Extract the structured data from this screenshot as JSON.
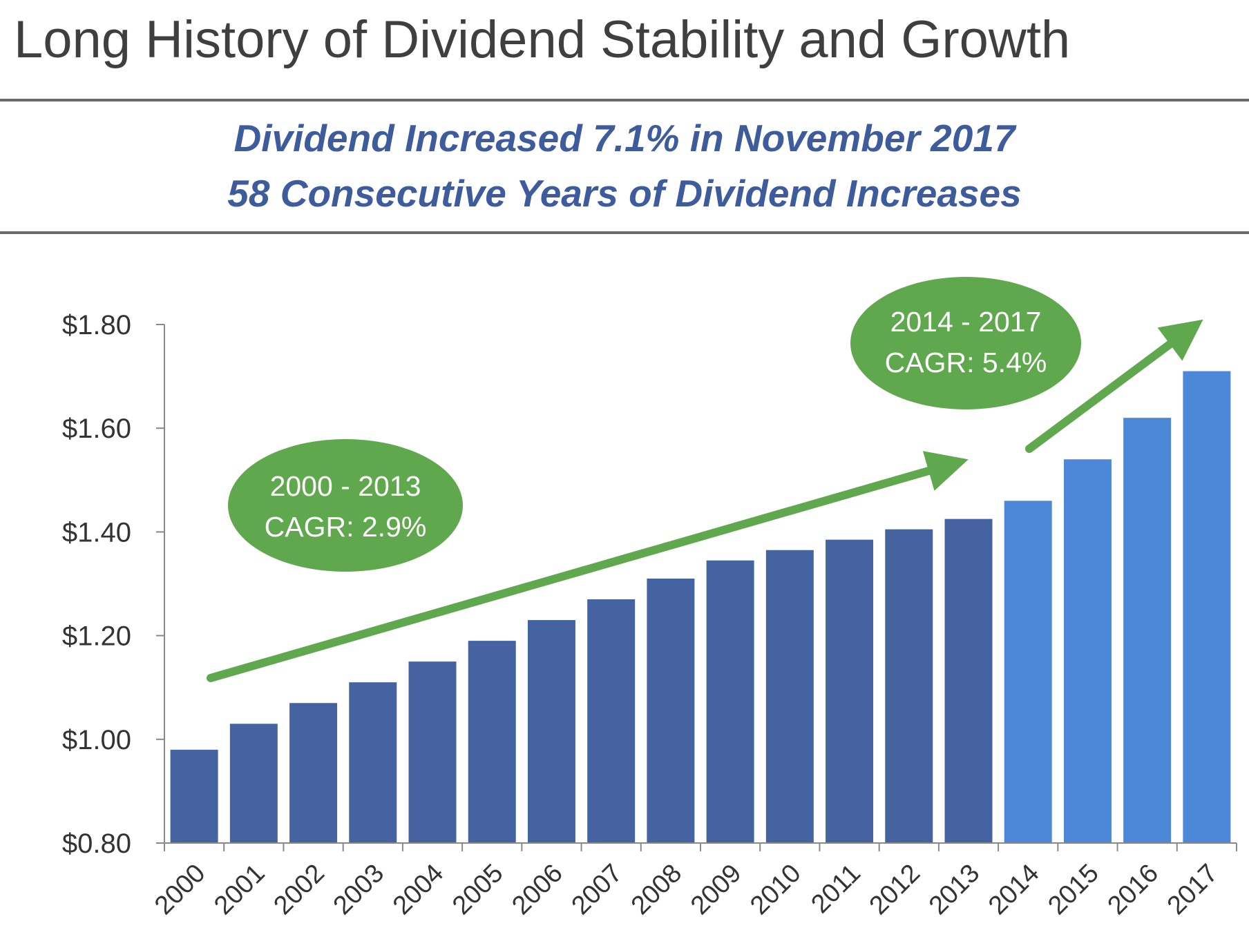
{
  "header": {
    "title": "Long History of Dividend Stability and Growth",
    "subtitle_line1": "Dividend Increased 7.1% in November 2017",
    "subtitle_line2": "58 Consecutive Years of Dividend Increases"
  },
  "colors": {
    "bar_early": "#4563a1",
    "bar_recent": "#4d87d7",
    "arrow": "#5fa84e",
    "callout": "#5fa84e",
    "subtitle": "#3e5b9c",
    "axis": "#888888"
  },
  "callouts": [
    {
      "line1": "2000 - 2013",
      "line2": "CAGR: 2.9%"
    },
    {
      "line1": "2014 - 2017",
      "line2": "CAGR: 5.4%"
    }
  ],
  "chart_data": {
    "type": "bar",
    "categories": [
      "2000",
      "2001",
      "2002",
      "2003",
      "2004",
      "2005",
      "2006",
      "2007",
      "2008",
      "2009",
      "2010",
      "2011",
      "2012",
      "2013",
      "2014",
      "2015",
      "2016",
      "2017"
    ],
    "values": [
      0.98,
      1.03,
      1.07,
      1.11,
      1.15,
      1.19,
      1.23,
      1.27,
      1.31,
      1.345,
      1.365,
      1.385,
      1.405,
      1.425,
      1.46,
      1.54,
      1.62,
      1.71
    ],
    "highlight_from": "2014",
    "ylim": [
      0.8,
      1.8
    ],
    "yticks": [
      0.8,
      1.0,
      1.2,
      1.4,
      1.6,
      1.8
    ],
    "ytick_labels": [
      "$0.80",
      "$1.00",
      "$1.20",
      "$1.40",
      "$1.60",
      "$1.80"
    ],
    "grid": false,
    "legend": "none",
    "xlabel": "",
    "ylabel": ""
  }
}
